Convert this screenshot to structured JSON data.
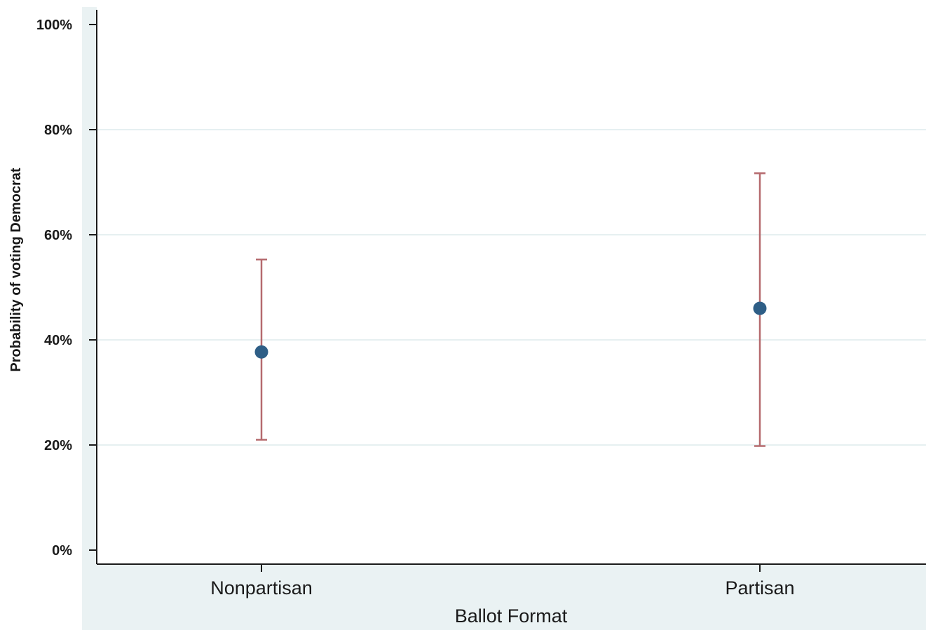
{
  "chart_data": {
    "type": "scatter",
    "title": "",
    "xlabel": "Ballot Format",
    "ylabel": "Probability of voting Democrat",
    "categories": [
      "Nonpartisan",
      "Partisan"
    ],
    "points": [
      {
        "category": "Nonpartisan",
        "value": 37.7,
        "lower": 21.0,
        "upper": 55.3
      },
      {
        "category": "Partisan",
        "value": 46.0,
        "lower": 19.8,
        "upper": 71.7
      }
    ],
    "ylim": [
      0,
      100
    ],
    "yticks": [
      0,
      20,
      40,
      60,
      80,
      100
    ],
    "ytick_labels": [
      "0%",
      "20%",
      "40%",
      "60%",
      "80%",
      "100%"
    ],
    "grid": true,
    "legend": "none",
    "colors": {
      "marker": "#2e5e86",
      "errorbar": "#b56a6e",
      "plot_background": "#ffffff",
      "outer_background": "#eaf2f3",
      "gridline": "#e6f0f1",
      "axis": "#1a1a1a"
    }
  }
}
